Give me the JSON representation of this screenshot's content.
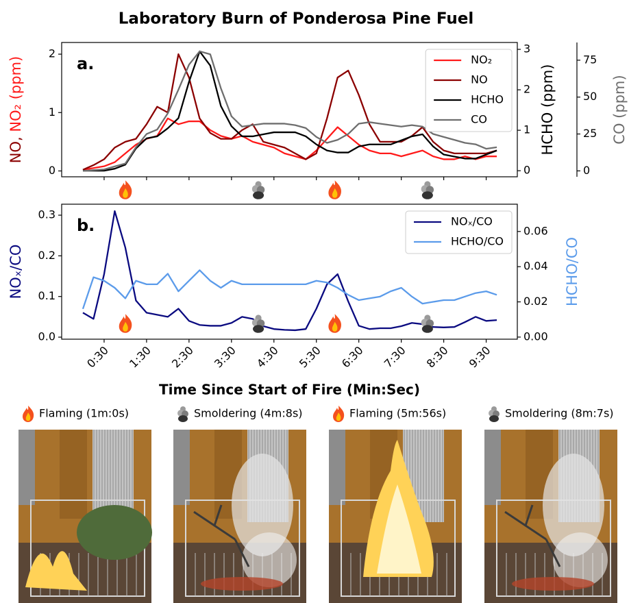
{
  "title": "Laboratory Burn of Ponderosa Pine Fuel",
  "chart_data": [
    {
      "type": "line",
      "panel_label": "a.",
      "x": [
        0,
        15,
        30,
        45,
        60,
        75,
        90,
        105,
        120,
        135,
        150,
        165,
        180,
        195,
        210,
        225,
        240,
        255,
        270,
        285,
        300,
        315,
        330,
        345,
        360,
        375,
        390,
        405,
        420,
        435,
        450,
        465,
        480,
        495,
        510,
        525,
        540,
        555,
        570,
        585
      ],
      "xlim": [
        -30,
        614
      ],
      "xticks": [
        30,
        90,
        150,
        210,
        270,
        330,
        390,
        450,
        510,
        570
      ],
      "ylim": [
        -0.1,
        2.2
      ],
      "yticks": [
        0,
        1,
        2
      ],
      "ylabel": [
        {
          "text": "NO,",
          "color": "#8b0000"
        },
        {
          "text": " NO₂ (ppm)",
          "color": "#ff1a1a"
        }
      ],
      "y2lim": [
        -0.15,
        3.17
      ],
      "y2ticks": [
        0,
        1,
        2,
        3
      ],
      "y2label": [
        {
          "text": "HCHO (ppm)",
          "color": "#000000"
        }
      ],
      "y3lim": [
        -4,
        87
      ],
      "y3ticks": [
        0,
        25,
        50,
        75
      ],
      "y3label": [
        {
          "text": "CO (ppm)",
          "color": "#6e6e6e"
        }
      ],
      "legend": "upper right",
      "series": [
        {
          "name": "NO₂",
          "color": "#ff1a1a",
          "values": [
            0.02,
            0.05,
            0.08,
            0.15,
            0.3,
            0.45,
            0.55,
            0.6,
            0.9,
            0.8,
            0.85,
            0.85,
            0.7,
            0.6,
            0.55,
            0.6,
            0.5,
            0.45,
            0.4,
            0.3,
            0.25,
            0.2,
            0.35,
            0.55,
            0.75,
            0.6,
            0.45,
            0.35,
            0.3,
            0.3,
            0.25,
            0.3,
            0.35,
            0.25,
            0.2,
            0.2,
            0.25,
            0.2,
            0.25,
            0.25
          ]
        },
        {
          "name": "NO",
          "color": "#8b0000",
          "values": [
            0.02,
            0.1,
            0.2,
            0.4,
            0.5,
            0.55,
            0.8,
            1.1,
            1.0,
            2.0,
            1.6,
            0.9,
            0.65,
            0.55,
            0.55,
            0.7,
            0.8,
            0.5,
            0.45,
            0.4,
            0.3,
            0.2,
            0.3,
            0.9,
            1.6,
            1.72,
            1.3,
            0.8,
            0.5,
            0.5,
            0.5,
            0.6,
            0.75,
            0.5,
            0.35,
            0.3,
            0.3,
            0.3,
            0.3,
            0.35
          ]
        },
        {
          "name": "HCHO",
          "color": "#000000",
          "axis": "y2",
          "values": [
            0,
            0,
            0,
            0.05,
            0.15,
            0.55,
            0.8,
            0.85,
            1.05,
            1.3,
            2.2,
            2.95,
            2.6,
            1.6,
            1.1,
            0.85,
            0.85,
            0.9,
            0.95,
            0.95,
            0.95,
            0.85,
            0.65,
            0.5,
            0.45,
            0.45,
            0.6,
            0.65,
            0.65,
            0.65,
            0.75,
            0.85,
            0.9,
            0.6,
            0.4,
            0.35,
            0.3,
            0.3,
            0.4,
            0.5
          ]
        },
        {
          "name": "CO",
          "color": "#6e6e6e",
          "axis": "y3",
          "values": [
            0,
            0.5,
            1,
            3,
            5,
            16,
            25,
            28,
            39,
            55,
            72,
            81,
            79,
            56,
            37,
            30,
            31,
            32,
            32,
            32,
            31,
            29,
            23,
            19,
            21,
            25,
            32,
            33,
            32,
            31,
            30,
            31,
            30,
            25,
            23,
            21,
            19,
            18,
            15,
            16
          ]
        }
      ]
    },
    {
      "type": "line",
      "panel_label": "b.",
      "x": [
        0,
        15,
        30,
        45,
        60,
        75,
        90,
        105,
        120,
        135,
        150,
        165,
        180,
        195,
        210,
        225,
        240,
        255,
        270,
        285,
        300,
        315,
        330,
        345,
        360,
        375,
        390,
        405,
        420,
        435,
        450,
        465,
        480,
        495,
        510,
        525,
        540,
        555,
        570,
        585
      ],
      "xlim": [
        -30,
        614
      ],
      "xticks": [
        {
          "value": 30,
          "label": "0:30"
        },
        {
          "value": 90,
          "label": "1:30"
        },
        {
          "value": 150,
          "label": "2:30"
        },
        {
          "value": 210,
          "label": "3:30"
        },
        {
          "value": 270,
          "label": "4:30"
        },
        {
          "value": 330,
          "label": "5:30"
        },
        {
          "value": 390,
          "label": "6:30"
        },
        {
          "value": 450,
          "label": "7:30"
        },
        {
          "value": 510,
          "label": "8:30"
        },
        {
          "value": 570,
          "label": "9:30"
        }
      ],
      "xlabel": "Time Since Start of Fire (Min:Sec)",
      "ylim": [
        -0.005,
        0.327
      ],
      "yticks": [
        {
          "value": 0,
          "label": "0.0"
        },
        0.1,
        0.2,
        0.3
      ],
      "ylabel": [
        {
          "text": "NOₓ/CO",
          "color": "#0a0a80"
        }
      ],
      "y2lim": [
        -0.0012,
        0.0755
      ],
      "y2ticks": [
        {
          "value": 0,
          "label": "0.00"
        },
        {
          "value": 0.02,
          "label": "0.02"
        },
        {
          "value": 0.04,
          "label": "0.04"
        },
        {
          "value": 0.06,
          "label": "0.06"
        }
      ],
      "y2label": [
        {
          "text": "HCHO/CO",
          "color": "#5b9bea"
        }
      ],
      "legend": "upper right",
      "series": [
        {
          "name": "NOₓ/CO",
          "color": "#0a0a80",
          "values": [
            0.06,
            0.045,
            0.155,
            0.31,
            0.22,
            0.09,
            0.06,
            0.055,
            0.05,
            0.07,
            0.04,
            0.03,
            0.028,
            0.028,
            0.035,
            0.05,
            0.045,
            0.027,
            0.02,
            0.018,
            0.017,
            0.02,
            0.07,
            0.13,
            0.155,
            0.088,
            0.028,
            0.02,
            0.022,
            0.022,
            0.027,
            0.035,
            0.032,
            0.025,
            0.024,
            0.025,
            0.037,
            0.05,
            0.04,
            0.042
          ]
        },
        {
          "name": "HCHO/CO",
          "color": "#5b9bea",
          "axis": "y2",
          "values": [
            0.016,
            0.034,
            0.032,
            0.028,
            0.022,
            0.032,
            0.03,
            0.03,
            0.036,
            0.026,
            0.032,
            0.038,
            0.032,
            0.028,
            0.032,
            0.03,
            0.03,
            0.03,
            0.03,
            0.03,
            0.03,
            0.03,
            0.032,
            0.031,
            0.028,
            0.024,
            0.021,
            0.022,
            0.023,
            0.026,
            0.028,
            0.023,
            0.019,
            0.02,
            0.021,
            0.021,
            0.023,
            0.025,
            0.026,
            0.024
          ]
        }
      ]
    }
  ],
  "events": [
    {
      "label": "Flaming (1m:0s)",
      "kind": "flame",
      "time": 60
    },
    {
      "label": "Smoldering (4m:8s)",
      "kind": "smoke",
      "time": 248
    },
    {
      "label": "Flaming (5m:56s)",
      "kind": "flame",
      "time": 356
    },
    {
      "label": "Smoldering (8m:7s)",
      "kind": "smoke",
      "time": 487
    }
  ]
}
